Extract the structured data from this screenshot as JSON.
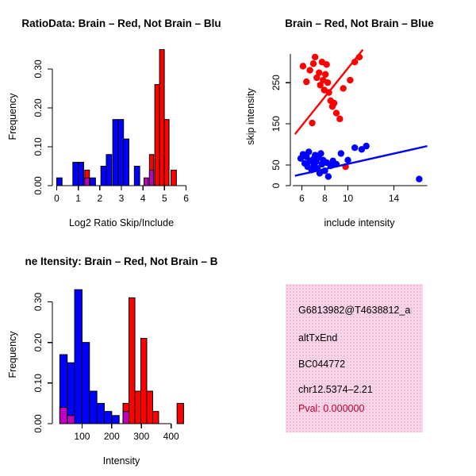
{
  "colors": {
    "red": "#FF0000",
    "blue": "#0000FF",
    "purple": "#BF00BF",
    "axis": "#000000"
  },
  "chart_data": [
    {
      "type": "bar",
      "title": "RatioData: Brain – Red, Not Brain – Blu",
      "xlabel": "Log2 Ratio Skip/Include",
      "ylabel": "Frequency",
      "xlim": [
        -0.2,
        6.2
      ],
      "ylim": [
        0,
        0.355
      ],
      "x_axis_span": [
        0,
        6
      ],
      "y_axis_span": [
        0,
        0.3
      ],
      "xticks": [
        0,
        1,
        2,
        3,
        4,
        5,
        6
      ],
      "yticks": [
        0,
        0.1,
        0.2,
        0.3
      ],
      "ytick_labels": [
        "0.00",
        "0.10",
        "0.20",
        "0.30"
      ],
      "bars": [
        {
          "x": 0.0,
          "w": 0.25,
          "h": 0.02,
          "color": "blue"
        },
        {
          "x": 0.75,
          "w": 0.25,
          "h": 0.06,
          "color": "blue"
        },
        {
          "x": 1.0,
          "w": 0.25,
          "h": 0.06,
          "color": "blue"
        },
        {
          "x": 1.3,
          "w": 0.22,
          "h": 0.04,
          "color": "red"
        },
        {
          "x": 1.3,
          "w": 0.22,
          "h": 0.02,
          "color": "purple"
        },
        {
          "x": 1.55,
          "w": 0.25,
          "h": 0.02,
          "color": "blue"
        },
        {
          "x": 2.05,
          "w": 0.25,
          "h": 0.05,
          "color": "blue"
        },
        {
          "x": 2.3,
          "w": 0.25,
          "h": 0.08,
          "color": "blue"
        },
        {
          "x": 2.6,
          "w": 0.25,
          "h": 0.17,
          "color": "blue"
        },
        {
          "x": 2.85,
          "w": 0.25,
          "h": 0.17,
          "color": "blue"
        },
        {
          "x": 3.1,
          "w": 0.25,
          "h": 0.12,
          "color": "blue"
        },
        {
          "x": 3.6,
          "w": 0.25,
          "h": 0.05,
          "color": "blue"
        },
        {
          "x": 4.05,
          "w": 0.2,
          "h": 0.02,
          "color": "purple"
        },
        {
          "x": 4.3,
          "w": 0.2,
          "h": 0.08,
          "color": "red"
        },
        {
          "x": 4.3,
          "w": 0.2,
          "h": 0.04,
          "color": "purple"
        },
        {
          "x": 4.55,
          "w": 0.22,
          "h": 0.26,
          "color": "red"
        },
        {
          "x": 4.77,
          "w": 0.22,
          "h": 0.35,
          "color": "red"
        },
        {
          "x": 4.99,
          "w": 0.22,
          "h": 0.17,
          "color": "red"
        },
        {
          "x": 5.3,
          "w": 0.25,
          "h": 0.04,
          "color": "red"
        }
      ]
    },
    {
      "type": "scatter",
      "title": "Brain – Red, Not Brain – Blue",
      "xlabel": "include intensity",
      "ylabel": "skip intensity",
      "xlim": [
        5,
        17
      ],
      "ylim": [
        0,
        335
      ],
      "x_axis_span": [
        5.2,
        16.9
      ],
      "y_axis_span": [
        0,
        320
      ],
      "xticks": [
        6,
        8,
        10,
        14
      ],
      "yticks": [
        0,
        50,
        150,
        250
      ],
      "series": [
        {
          "name": "brain",
          "color": "red",
          "line": {
            "x1": 5.4,
            "y1": 125,
            "x2": 11.3,
            "y2": 330
          },
          "points": [
            [
              6.1,
              290
            ],
            [
              6.4,
              252
            ],
            [
              6.7,
              280
            ],
            [
              7.0,
              296
            ],
            [
              7.15,
              312
            ],
            [
              7.3,
              262
            ],
            [
              7.5,
              274
            ],
            [
              7.6,
              244
            ],
            [
              7.75,
              300
            ],
            [
              7.85,
              256
            ],
            [
              7.95,
              232
            ],
            [
              8.05,
              270
            ],
            [
              8.15,
              294
            ],
            [
              8.25,
              250
            ],
            [
              8.35,
              226
            ],
            [
              8.5,
              206
            ],
            [
              8.65,
              192
            ],
            [
              8.8,
              200
            ],
            [
              9.0,
              176
            ],
            [
              9.3,
              162
            ],
            [
              9.6,
              236
            ],
            [
              10.2,
              256
            ],
            [
              10.6,
              300
            ],
            [
              11.0,
              312
            ],
            [
              6.9,
              152
            ],
            [
              9.8,
              46
            ]
          ]
        },
        {
          "name": "not-brain",
          "color": "blue",
          "line": {
            "x1": 5.4,
            "y1": 24,
            "x2": 16.9,
            "y2": 96
          },
          "points": [
            [
              5.9,
              66
            ],
            [
              6.1,
              76
            ],
            [
              6.25,
              54
            ],
            [
              6.4,
              70
            ],
            [
              6.5,
              46
            ],
            [
              6.6,
              82
            ],
            [
              6.7,
              60
            ],
            [
              6.85,
              38
            ],
            [
              7.0,
              64
            ],
            [
              7.05,
              50
            ],
            [
              7.15,
              74
            ],
            [
              7.25,
              58
            ],
            [
              7.35,
              42
            ],
            [
              7.45,
              68
            ],
            [
              7.55,
              30
            ],
            [
              7.65,
              78
            ],
            [
              7.75,
              52
            ],
            [
              7.85,
              62
            ],
            [
              8.0,
              36
            ],
            [
              8.15,
              56
            ],
            [
              8.3,
              22
            ],
            [
              8.5,
              48
            ],
            [
              8.7,
              60
            ],
            [
              9.0,
              52
            ],
            [
              9.4,
              78
            ],
            [
              10.0,
              62
            ],
            [
              10.6,
              92
            ],
            [
              11.2,
              88
            ],
            [
              11.6,
              96
            ],
            [
              16.2,
              16
            ]
          ]
        }
      ]
    },
    {
      "type": "bar",
      "title": "ne Itensity: Brain – Red, Not Brain – B",
      "xlabel": "Intensity",
      "ylabel": "Frequency",
      "xlim": [
        0,
        465
      ],
      "ylim": [
        0,
        0.34
      ],
      "x_axis_span": [
        100,
        400
      ],
      "y_axis_span": [
        0,
        0.3
      ],
      "xticks": [
        100,
        200,
        300,
        400
      ],
      "yticks": [
        0,
        0.1,
        0.2,
        0.3
      ],
      "ytick_labels": [
        "0.00",
        "0.10",
        "0.20",
        "0.30"
      ],
      "bars": [
        {
          "x": 25,
          "w": 25,
          "h": 0.17,
          "color": "blue"
        },
        {
          "x": 25,
          "w": 25,
          "h": 0.04,
          "color": "purple"
        },
        {
          "x": 50,
          "w": 25,
          "h": 0.15,
          "color": "blue"
        },
        {
          "x": 50,
          "w": 25,
          "h": 0.02,
          "color": "purple"
        },
        {
          "x": 75,
          "w": 25,
          "h": 0.33,
          "color": "blue"
        },
        {
          "x": 100,
          "w": 25,
          "h": 0.2,
          "color": "blue"
        },
        {
          "x": 125,
          "w": 25,
          "h": 0.08,
          "color": "blue"
        },
        {
          "x": 150,
          "w": 25,
          "h": 0.05,
          "color": "blue"
        },
        {
          "x": 175,
          "w": 25,
          "h": 0.03,
          "color": "blue"
        },
        {
          "x": 200,
          "w": 25,
          "h": 0.02,
          "color": "blue"
        },
        {
          "x": 238,
          "w": 20,
          "h": 0.05,
          "color": "red"
        },
        {
          "x": 238,
          "w": 20,
          "h": 0.03,
          "color": "purple"
        },
        {
          "x": 258,
          "w": 20,
          "h": 0.31,
          "color": "red"
        },
        {
          "x": 278,
          "w": 20,
          "h": 0.08,
          "color": "red"
        },
        {
          "x": 298,
          "w": 20,
          "h": 0.21,
          "color": "red"
        },
        {
          "x": 318,
          "w": 20,
          "h": 0.08,
          "color": "red"
        },
        {
          "x": 338,
          "w": 20,
          "h": 0.03,
          "color": "red"
        },
        {
          "x": 420,
          "w": 22,
          "h": 0.05,
          "color": "red"
        }
      ]
    }
  ],
  "info_box": {
    "lines": [
      "G6813982@T4638812_a",
      "altTxEnd",
      "BC044772",
      "chr12.5374–2.21"
    ],
    "pval": "Pval: 0.000000",
    "bg_color": "#f8d5e7",
    "pval_color": "#C00030"
  }
}
